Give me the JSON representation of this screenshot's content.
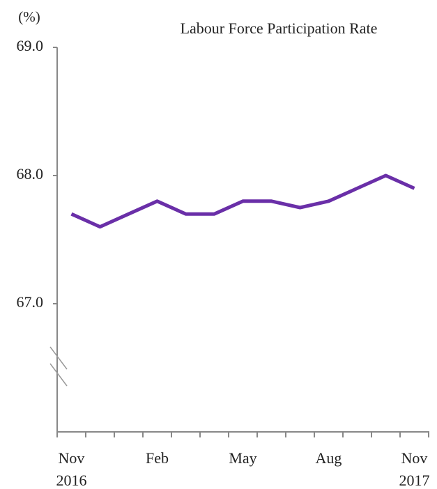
{
  "chart_data": {
    "type": "line",
    "title": "Labour Force Participation Rate",
    "y_label": "(%)",
    "categories": [
      "Nov 2016",
      null,
      null,
      "Feb",
      null,
      null,
      "May",
      null,
      null,
      "Aug",
      null,
      null,
      "Nov 2017"
    ],
    "series": [
      {
        "name": "Labour Force Participation Rate",
        "color": "#6a2fa8",
        "values": [
          67.7,
          67.6,
          67.7,
          67.8,
          67.7,
          67.7,
          67.8,
          67.8,
          67.75,
          67.8,
          67.9,
          68.0,
          67.9
        ]
      }
    ],
    "ylim": [
      66,
      69
    ],
    "yticks": [
      {
        "value": 67,
        "label": "67.0"
      },
      {
        "value": 68,
        "label": "68.0"
      },
      {
        "value": 69,
        "label": "69.0"
      }
    ],
    "grid": false
  }
}
